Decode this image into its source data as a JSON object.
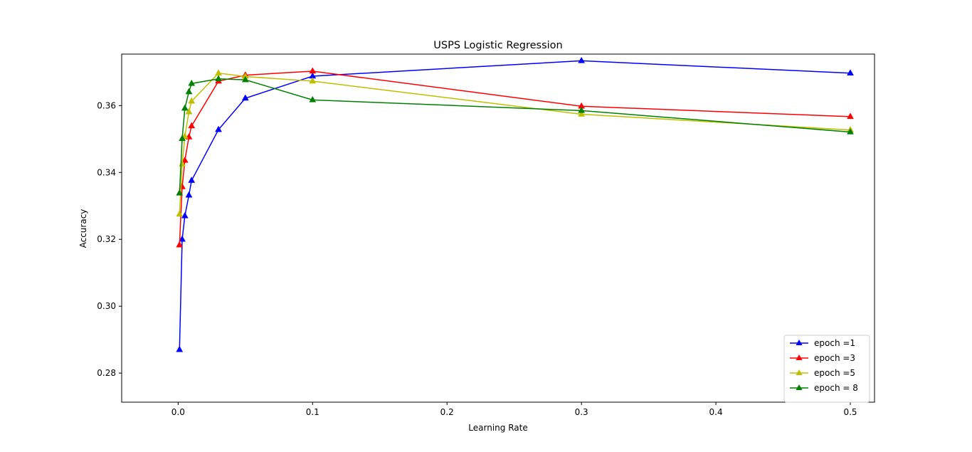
{
  "chart_data": {
    "type": "line",
    "title": "USPS Logistic Regression",
    "xlabel": "Learning Rate",
    "ylabel": "Accuracy",
    "xlim": [
      -0.042,
      0.518
    ],
    "ylim": [
      0.2713,
      0.3754
    ],
    "xticks": [
      0.0,
      0.1,
      0.2,
      0.3,
      0.4,
      0.5
    ],
    "xtick_labels": [
      "0.0",
      "0.1",
      "0.2",
      "0.3",
      "0.4",
      "0.5"
    ],
    "yticks": [
      0.28,
      0.3,
      0.32,
      0.34,
      0.36
    ],
    "ytick_labels": [
      "0.28",
      "0.30",
      "0.32",
      "0.34",
      "0.36"
    ],
    "grid": false,
    "legend_position": "lower-right",
    "marker": "triangle",
    "series": [
      {
        "name": "epoch =1",
        "color": "#0000ff",
        "x": [
          0.001,
          0.003,
          0.005,
          0.008,
          0.01,
          0.03,
          0.05,
          0.1,
          0.3,
          0.5
        ],
        "y": [
          0.287,
          0.32,
          0.327,
          0.3332,
          0.3376,
          0.3528,
          0.3622,
          0.3688,
          0.3734,
          0.3697
        ]
      },
      {
        "name": "epoch =3",
        "color": "#ff0000",
        "x": [
          0.001,
          0.003,
          0.005,
          0.008,
          0.01,
          0.03,
          0.05,
          0.1,
          0.3,
          0.5
        ],
        "y": [
          0.3183,
          0.3357,
          0.3436,
          0.3506,
          0.3539,
          0.3673,
          0.3691,
          0.3703,
          0.3598,
          0.3567
        ]
      },
      {
        "name": "epoch =5",
        "color": "#bfbf00",
        "x": [
          0.001,
          0.003,
          0.005,
          0.008,
          0.01,
          0.03,
          0.05,
          0.1,
          0.3,
          0.5
        ],
        "y": [
          0.3275,
          0.3425,
          0.3508,
          0.3581,
          0.3613,
          0.3697,
          0.3687,
          0.3673,
          0.3574,
          0.3527
        ]
      },
      {
        "name": "epoch = 8",
        "color": "#008000",
        "x": [
          0.001,
          0.003,
          0.005,
          0.008,
          0.01,
          0.03,
          0.05,
          0.1,
          0.3,
          0.5
        ],
        "y": [
          0.3338,
          0.3501,
          0.3592,
          0.3641,
          0.3666,
          0.368,
          0.3677,
          0.3617,
          0.3585,
          0.3521
        ]
      }
    ]
  }
}
